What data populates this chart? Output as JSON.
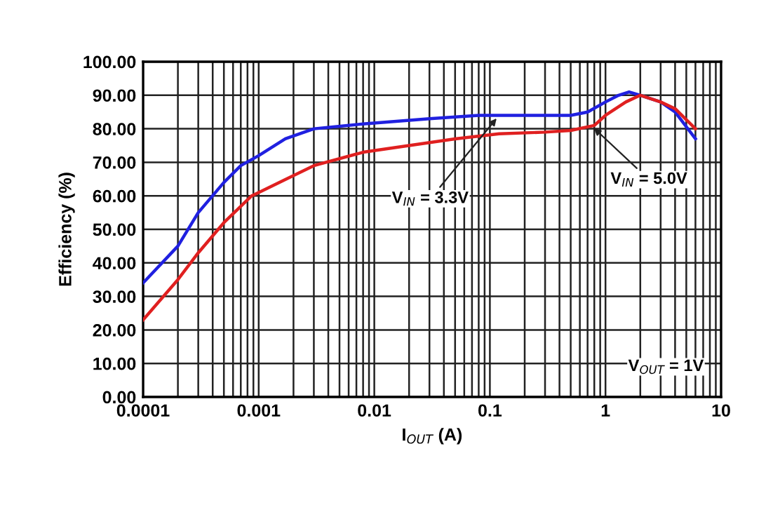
{
  "chart_data": {
    "type": "line",
    "xlabel": "I$_{OUT}$ (A)",
    "ylabel": "Efficiency (%)",
    "log": "x",
    "series": [
      {
        "color": "#2020e0",
        "x": [
          0.0001,
          0.0002,
          0.0003,
          0.0005,
          0.0007,
          0.001,
          0.0017,
          0.003,
          0.0083,
          0.03,
          0.08,
          0.2,
          0.5,
          0.7,
          1,
          1.3,
          1.6,
          2,
          3,
          4,
          6
        ],
        "values": [
          34,
          45,
          55,
          64,
          69,
          72,
          77,
          80,
          81.5,
          83,
          84,
          84,
          84,
          85,
          88,
          90,
          91,
          90,
          88,
          85,
          77
        ]
      },
      {
        "color": "#e02020",
        "x": [
          0.0001,
          0.0002,
          0.0003,
          0.0005,
          0.00087,
          0.001,
          0.003,
          0.008,
          0.02,
          0.05,
          0.12,
          0.3,
          0.5,
          0.8,
          1,
          1.5,
          2,
          3,
          4,
          6
        ],
        "values": [
          23,
          35,
          43,
          52,
          60,
          61,
          69,
          73,
          75,
          77,
          78.5,
          79,
          79.5,
          81,
          84,
          88,
          90,
          88,
          86,
          80
        ]
      }
    ],
    "xlim": [
      0.0001,
      10
    ],
    "xticks": [
      {
        "value": 0.0001,
        "label": "0.0001"
      },
      {
        "value": 0.001,
        "label": "0.001"
      },
      {
        "value": 0.01,
        "label": "0.01"
      },
      {
        "value": 0.1,
        "label": "0.1"
      },
      {
        "value": 1,
        "label": "1"
      },
      {
        "value": 10,
        "label": "10"
      }
    ],
    "ylim": [
      0,
      100
    ],
    "yticks": [
      {
        "value": 0,
        "label": "0.00"
      },
      {
        "value": 10,
        "label": "10.00"
      },
      {
        "value": 20,
        "label": "20.00"
      },
      {
        "value": 30,
        "label": "30.00"
      },
      {
        "value": 40,
        "label": "40.00"
      },
      {
        "value": 50,
        "label": "50.00"
      },
      {
        "value": 60,
        "label": "60.00"
      },
      {
        "value": 70,
        "label": "70.00"
      },
      {
        "value": 80,
        "label": "80.00"
      },
      {
        "value": 90,
        "label": "90.00"
      },
      {
        "value": 100,
        "label": "100.00"
      }
    ],
    "grid": true,
    "annotations": [
      {
        "text": "V$_{IN}$ = 3.3V",
        "x": 0.12,
        "y": 84
      },
      {
        "text": "V$_{IN}$ = 5.0V",
        "x": 0.75,
        "y": 81
      },
      "V$_{OUT}$ = 1V"
    ]
  }
}
